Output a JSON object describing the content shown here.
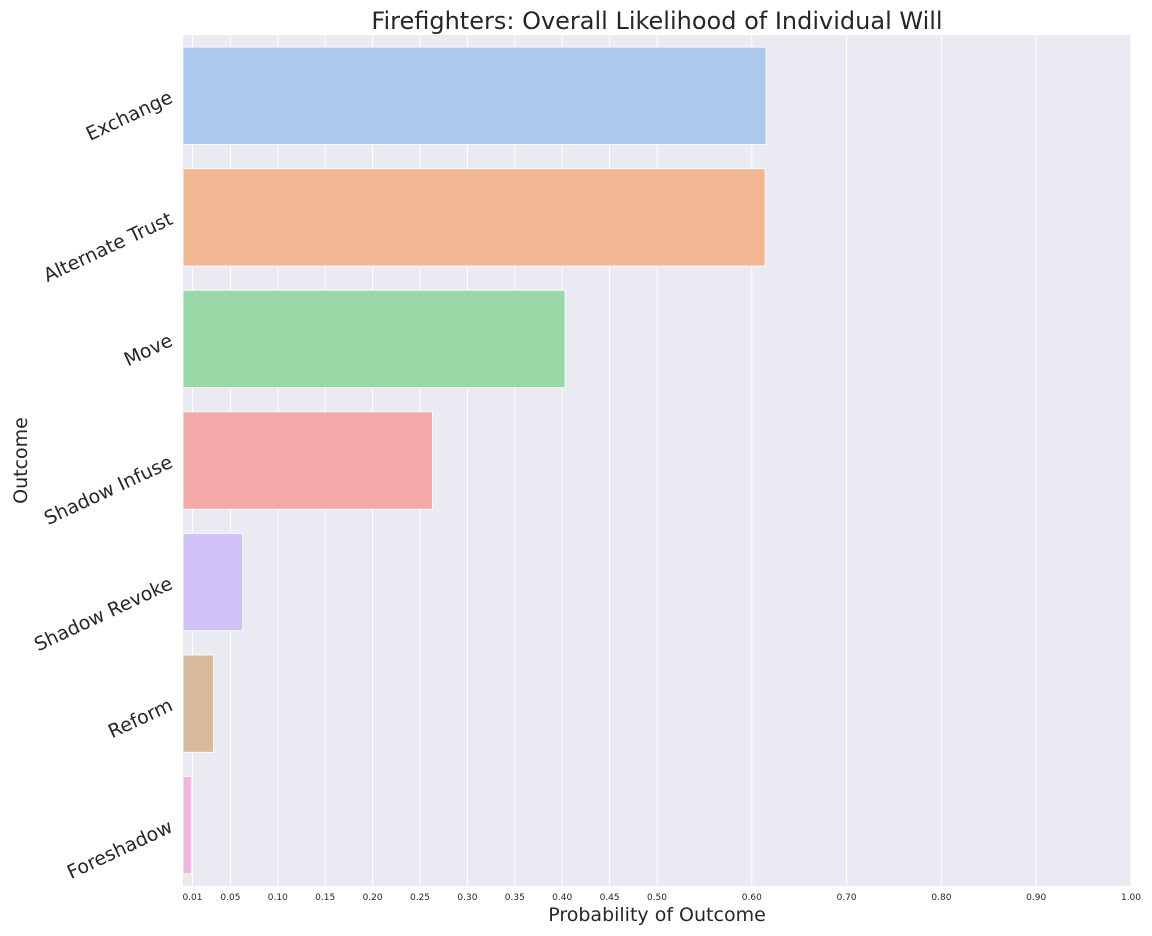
{
  "chart_data": {
    "type": "bar",
    "orientation": "horizontal",
    "title": "Firefighters: Overall Likelihood of Individual Will",
    "xlabel": "Probability of Outcome",
    "ylabel": "Outcome",
    "categories": [
      "Exchange",
      "Alternate Trust",
      "Move",
      "Shadow Infuse",
      "Shadow Revoke",
      "Reform",
      "Foreshadow"
    ],
    "values": [
      0.615,
      0.614,
      0.403,
      0.263,
      0.063,
      0.032,
      0.009
    ],
    "colors": [
      "#abc9ec",
      "#f1b793",
      "#99d9a8",
      "#f2a9a8",
      "#d1c3f7",
      "#d7b99e",
      "#f2b6e1"
    ],
    "xlim": [
      0,
      1.0
    ],
    "xticks": [
      0.01,
      0.05,
      0.1,
      0.15,
      0.2,
      0.25,
      0.3,
      0.35,
      0.4,
      0.45,
      0.5,
      0.6,
      0.7,
      0.8,
      0.9,
      1.0
    ],
    "xtick_labels": [
      "0.01",
      "0.05",
      "0.10",
      "0.15",
      "0.20",
      "0.25",
      "0.30",
      "0.35",
      "0.40",
      "0.45",
      "0.50",
      "0.60",
      "0.70",
      "0.80",
      "0.90",
      "1.00"
    ],
    "grid": true,
    "background": "#eaeaf2",
    "grid_color": "#ffffff"
  }
}
